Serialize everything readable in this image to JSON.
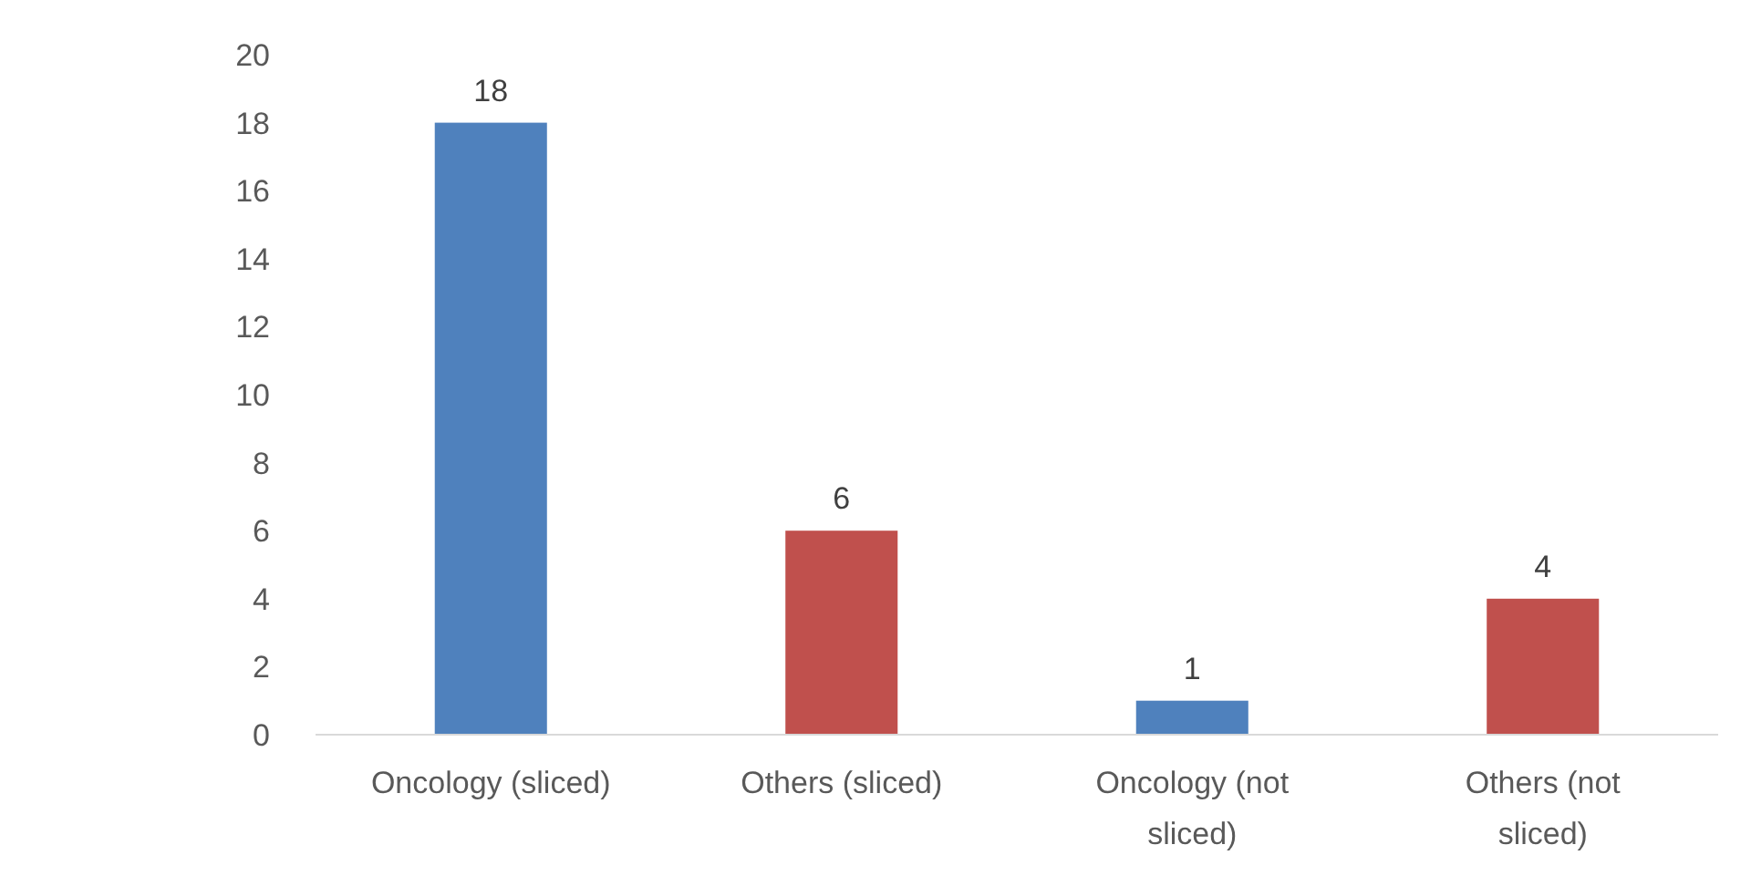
{
  "chart_data": {
    "type": "bar",
    "categories": [
      "Oncology (sliced)",
      "Others (sliced)",
      "Oncology (not sliced)",
      "Others (not sliced)"
    ],
    "values": [
      18,
      6,
      1,
      4
    ],
    "colors": [
      "#4f81bd",
      "#c0504d",
      "#4f81bd",
      "#c0504d"
    ],
    "ylim": [
      0,
      20
    ],
    "yticks": [
      0,
      2,
      4,
      6,
      8,
      10,
      12,
      14,
      16,
      18,
      20
    ],
    "grid": false,
    "data_labels": true
  }
}
